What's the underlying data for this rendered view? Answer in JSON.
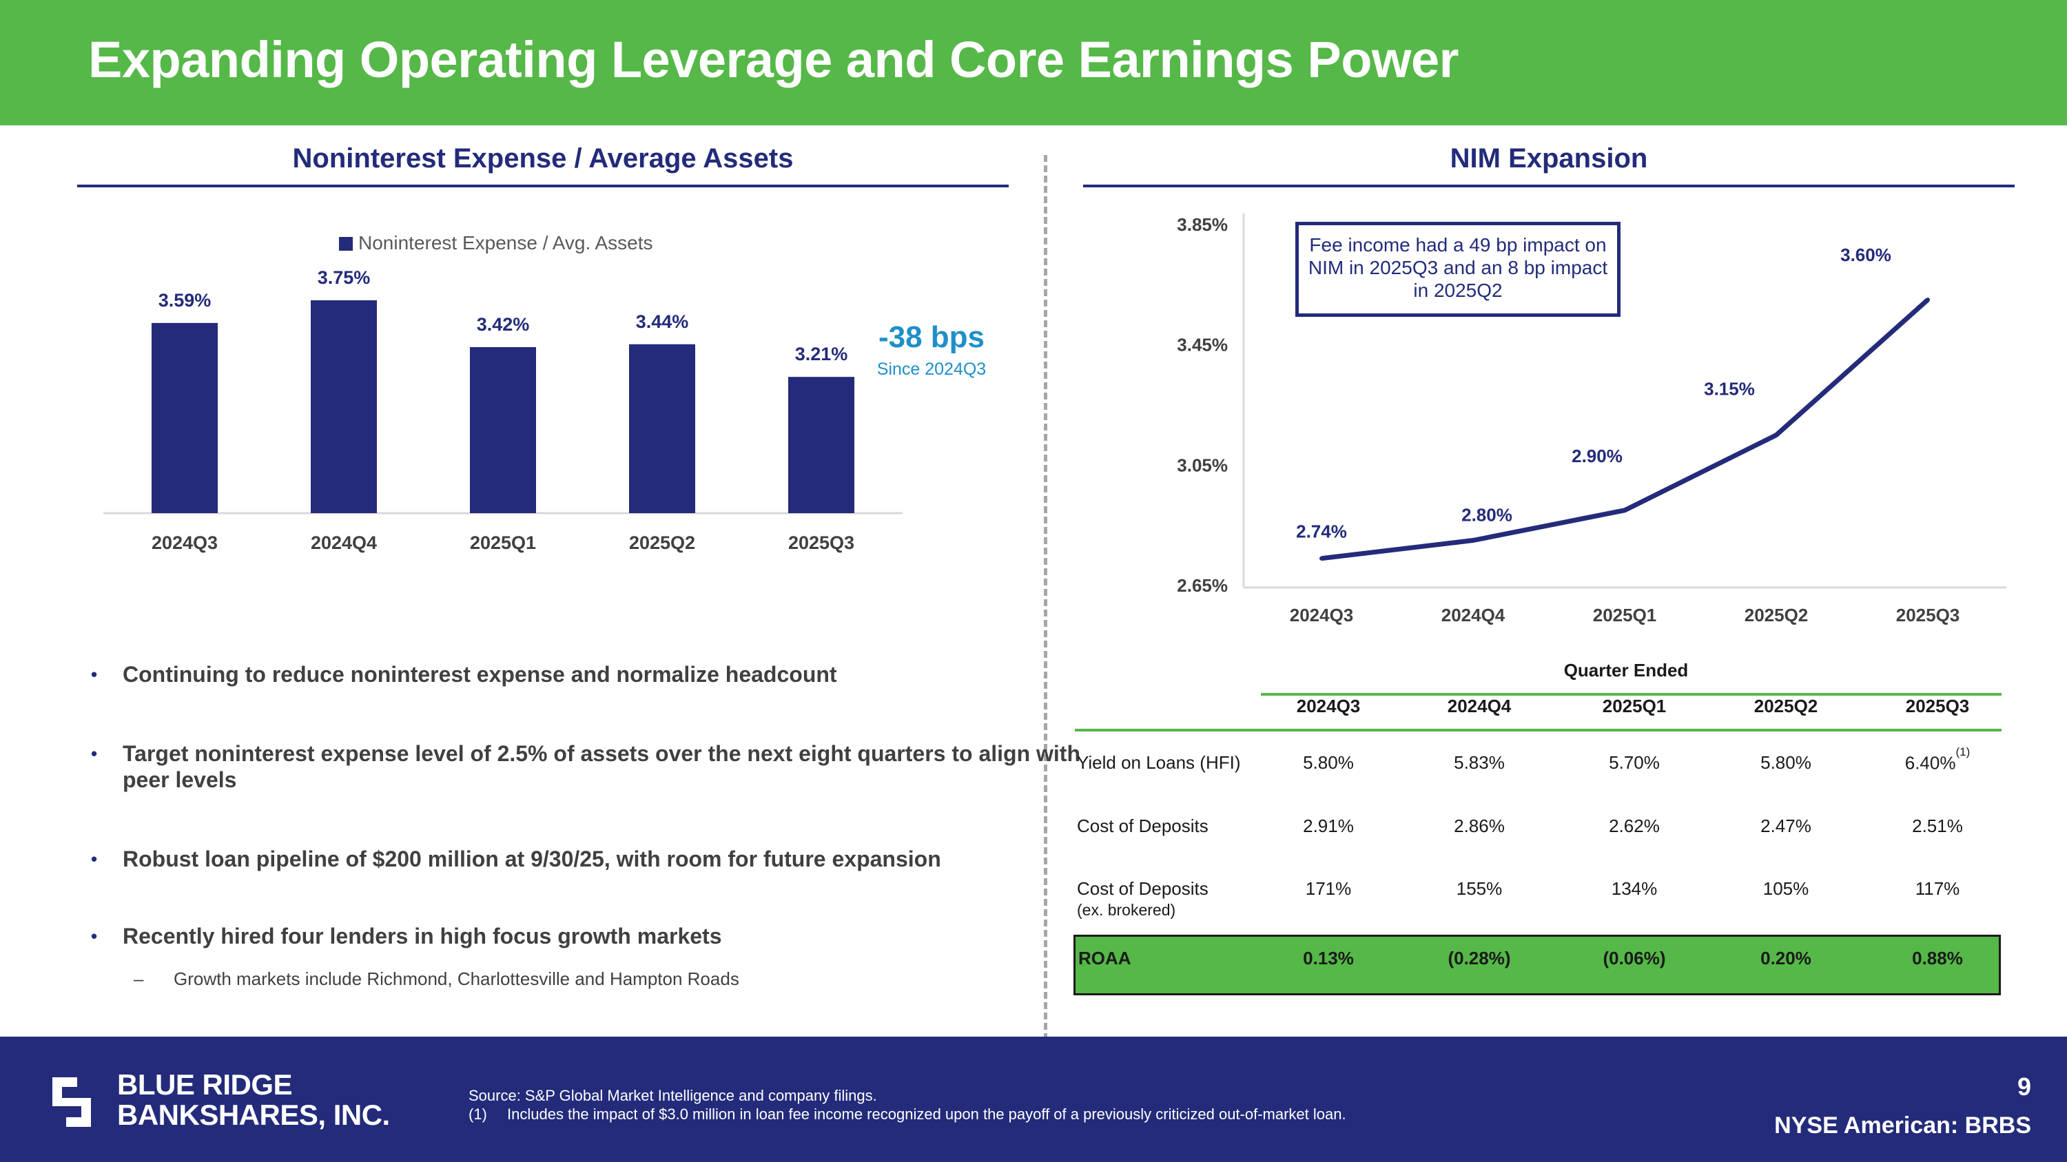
{
  "title": "Expanding Operating Leverage and Core Earnings Power",
  "left_section": {
    "heading": "Noninterest Expense / Average Assets",
    "callout_value": "-38 bps",
    "callout_note": "Since 2024Q3"
  },
  "right_section": {
    "heading": "NIM Expansion",
    "fee_note": "Fee income had a 49 bp impact on NIM in 2025Q3 and an 8 bp impact in 2025Q2"
  },
  "chart_data": [
    {
      "type": "bar",
      "title": "Noninterest Expense / Average Assets",
      "legend": "Noninterest Expense / Avg. Assets",
      "legend_position": "top",
      "categories": [
        "2024Q3",
        "2024Q4",
        "2025Q1",
        "2025Q2",
        "2025Q3"
      ],
      "values": [
        3.59,
        3.75,
        3.42,
        3.44,
        3.21
      ],
      "labels": [
        "3.59%",
        "3.75%",
        "3.42%",
        "3.44%",
        "3.21%"
      ],
      "ylim": [
        2.25,
        3.9
      ],
      "color": "#232b7a"
    },
    {
      "type": "line",
      "title": "NIM Expansion",
      "categories": [
        "2024Q3",
        "2024Q4",
        "2025Q1",
        "2025Q2",
        "2025Q3"
      ],
      "values": [
        2.74,
        2.8,
        2.9,
        3.15,
        3.6
      ],
      "labels": [
        "2.74%",
        "2.80%",
        "2.90%",
        "3.15%",
        "3.60%"
      ],
      "yticks": [
        "3.85%",
        "3.45%",
        "3.05%",
        "2.65%"
      ],
      "ylim": [
        2.65,
        3.85
      ],
      "color": "#232b7a"
    }
  ],
  "bullets": [
    "Continuing to reduce noninterest expense and normalize headcount",
    "Target noninterest expense level of 2.5% of assets over the next eight quarters to align with peer levels",
    "Robust loan pipeline of $200 million at 9/30/25, with room for future expansion",
    "Recently hired four lenders in high focus growth markets"
  ],
  "sub_bullet_dash": "–",
  "sub_bullet": "Growth markets include Richmond, Charlottesville and Hampton Roads",
  "table": {
    "group_label": "Quarter Ended",
    "columns": [
      "2024Q3",
      "2024Q4",
      "2025Q1",
      "2025Q2",
      "2025Q3"
    ],
    "rows": [
      {
        "label": "Yield on Loans (HFI)",
        "values": [
          "5.80%",
          "5.83%",
          "5.70%",
          "5.80%",
          "6.40%"
        ],
        "note_marker": "(1)"
      },
      {
        "label": "Cost of Deposits",
        "values": [
          "2.91%",
          "2.86%",
          "2.62%",
          "2.47%",
          "2.51%"
        ]
      },
      {
        "label": "Cost of Deposits",
        "sublabel": "(ex. brokered)",
        "values": [
          "171%",
          "155%",
          "134%",
          "105%",
          "117%"
        ]
      }
    ],
    "roaa": {
      "label": "ROAA",
      "values": [
        "0.13%",
        "(0.28%)",
        "(0.06%)",
        "0.20%",
        "0.88%"
      ]
    }
  },
  "footer": {
    "logo_line1": "BLUE RIDGE",
    "logo_line2": "BANKSHARES, INC.",
    "source": "Source: S&P Global Market Intelligence and company filings.",
    "footnote_num": "(1)",
    "footnote": "Includes the impact of $3.0 million in loan fee income recognized upon the payoff of a previously criticized out-of-market loan.",
    "page_number": "9",
    "ticker": "NYSE American: BRBS"
  },
  "colors": {
    "green": "#55b848",
    "navy": "#232b7a",
    "blue": "#1f8fc8"
  }
}
